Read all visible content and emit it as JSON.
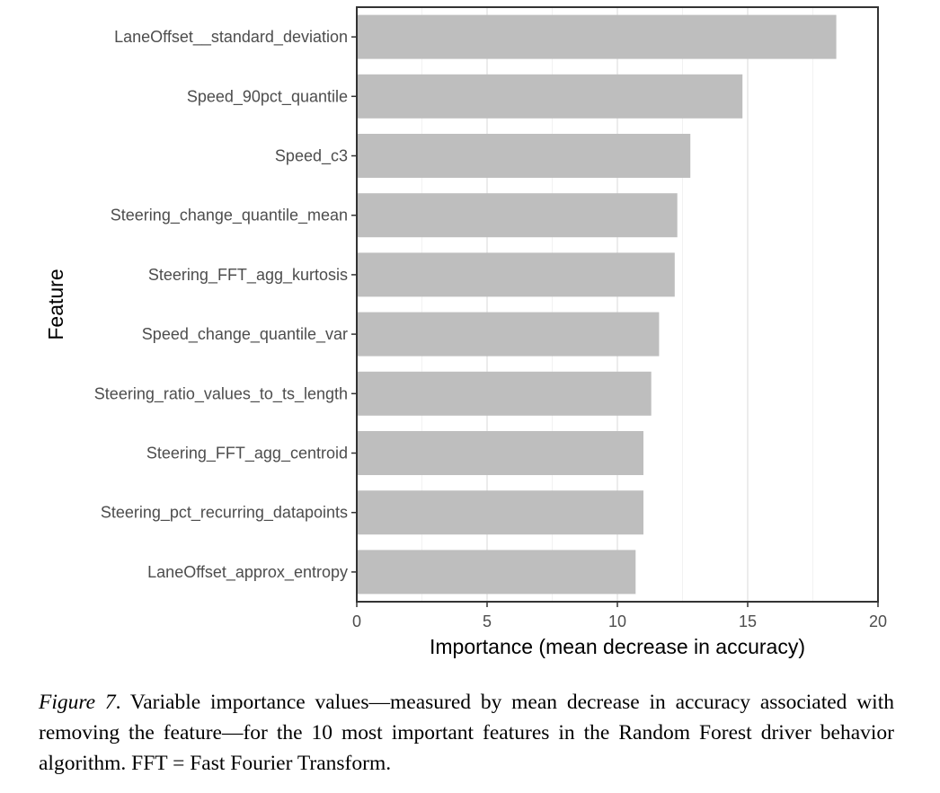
{
  "chart_data": {
    "type": "bar",
    "orientation": "horizontal",
    "categories": [
      "LaneOffset__standard_deviation",
      "Speed_90pct_quantile",
      "Speed_c3",
      "Steering_change_quantile_mean",
      "Steering_FFT_agg_kurtosis",
      "Speed_change_quantile_var",
      "Steering_ratio_values_to_ts_length",
      "Steering_FFT_agg_centroid",
      "Steering_pct_recurring_datapoints",
      "LaneOffset_approx_entropy"
    ],
    "values": [
      18.4,
      14.8,
      12.8,
      12.3,
      12.2,
      11.6,
      11.3,
      11.0,
      11.0,
      10.7
    ],
    "xlabel": "Importance (mean decrease in accuracy)",
    "ylabel": "Feature",
    "xlim": [
      0,
      20
    ],
    "x_ticks": [
      0,
      5,
      10,
      15,
      20
    ],
    "grid": true,
    "bar_color": "#bebebe"
  },
  "caption": {
    "label": "Figure 7",
    "text": ". Variable importance values—measured by mean decrease in accuracy associated with removing the feature—for the 10 most important features in the Random Forest driver behavior algorithm. FFT = Fast Fourier Transform."
  }
}
